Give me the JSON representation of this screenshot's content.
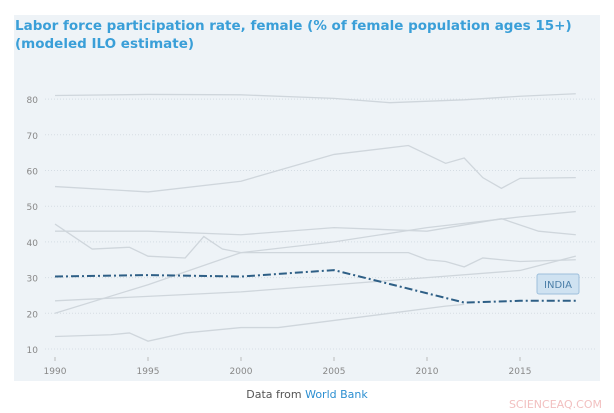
{
  "chart_data": {
    "type": "line",
    "title": "Labor force participation rate, female (% of female population ages 15+) (modeled ILO estimate)",
    "xlim": [
      1990,
      2018
    ],
    "ylim": [
      5,
      85
    ],
    "yticks": [
      10,
      20,
      30,
      40,
      50,
      60,
      70,
      80
    ],
    "xticks": [
      1990,
      1995,
      2000,
      2005,
      2010,
      2015
    ],
    "grid": "horizontal dotted",
    "highlight": {
      "name": "INDIA",
      "color": "#2e5f86",
      "x": [
        1990,
        1995,
        2000,
        2005,
        2012,
        2015,
        2018
      ],
      "y": [
        30.3,
        30.7,
        30.3,
        32.1,
        23,
        23.5,
        23.5
      ]
    },
    "background_series_color": "#cfd6dc",
    "series": [
      {
        "x": [
          1990,
          1995,
          2000,
          2005,
          2008,
          2012,
          2015,
          2018
        ],
        "y": [
          81,
          81.3,
          81.2,
          80.2,
          79,
          79.8,
          80.8,
          81.5
        ]
      },
      {
        "x": [
          1990,
          1995,
          2000,
          2005,
          2009,
          2011,
          2012,
          2013,
          2014,
          2015,
          2018
        ],
        "y": [
          55.5,
          54,
          57,
          64.5,
          67,
          62,
          63.5,
          58,
          55,
          57.8,
          58
        ]
      },
      {
        "x": [
          1990,
          1992,
          1994,
          1995,
          1997,
          1998,
          1999,
          2000,
          2009,
          2010,
          2011,
          2012,
          2013,
          2015,
          2018
        ],
        "y": [
          45,
          38,
          38.5,
          36,
          35.5,
          41.5,
          38,
          37,
          37,
          35,
          34.5,
          33,
          35.5,
          34.5,
          35
        ]
      },
      {
        "x": [
          1990,
          1995,
          2000,
          2005,
          2010,
          2014,
          2016,
          2018
        ],
        "y": [
          43,
          43,
          42,
          44,
          43,
          46.5,
          43,
          42
        ]
      },
      {
        "x": [
          1990,
          1995,
          2000,
          2005,
          2010,
          2015,
          2018
        ],
        "y": [
          20,
          28,
          37,
          40,
          44,
          47,
          48.5
        ]
      },
      {
        "x": [
          1990,
          2000,
          2005,
          2010,
          2015,
          2018
        ],
        "y": [
          23.5,
          26,
          28,
          30,
          32,
          36
        ]
      },
      {
        "x": [
          1990,
          1993,
          1994,
          1995,
          1997,
          2000,
          2002,
          2005,
          2008,
          2011,
          2012
        ],
        "y": [
          13.5,
          14,
          14.5,
          12.2,
          14.5,
          16,
          16,
          18,
          20,
          22,
          22.5
        ]
      }
    ]
  },
  "footer": {
    "prefix": "Data from ",
    "link": "World Bank"
  },
  "watermark": "SCIENCEAQ.COM"
}
